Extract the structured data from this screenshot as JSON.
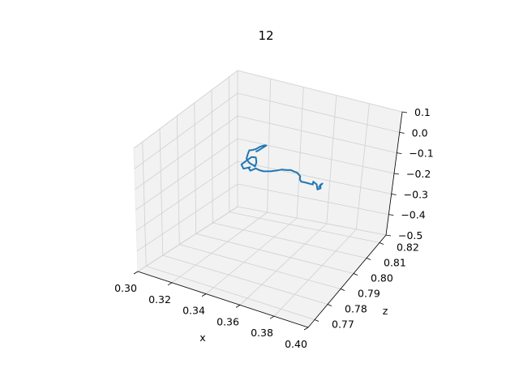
{
  "chart_data": {
    "type": "line",
    "projection": "3d",
    "title": "12",
    "xlabel": "x",
    "ylabel": "",
    "zlabel": "z",
    "grid": true,
    "series_color": "#1f77b4",
    "pane_color": "#f2f2f2",
    "x_axis": {
      "range": [
        0.3,
        0.4
      ],
      "ticks": [
        "0.30",
        "0.32",
        "0.34",
        "0.36",
        "0.38",
        "0.40"
      ]
    },
    "y_axis": {
      "range": [
        0.765,
        0.825
      ],
      "ticks": [
        "0.77",
        "0.78",
        "0.79",
        "0.80",
        "0.81",
        "0.82"
      ]
    },
    "z_axis": {
      "range": [
        -0.5,
        0.1
      ],
      "ticks": [
        "0.1",
        "0.0",
        "−0.1",
        "−0.2",
        "−0.3",
        "−0.4",
        "−0.5"
      ]
    },
    "series": [
      {
        "values": [
          [
            0.3357,
            0.8037,
            -0.0955
          ],
          [
            0.3374,
            0.8037,
            -0.0867
          ],
          [
            0.3387,
            0.804,
            -0.0791
          ],
          [
            0.3403,
            0.804,
            -0.0696
          ],
          [
            0.3419,
            0.804,
            -0.0603
          ],
          [
            0.3417,
            0.8028,
            -0.0533
          ],
          [
            0.34,
            0.802,
            -0.0573
          ],
          [
            0.3385,
            0.8007,
            -0.0633
          ],
          [
            0.3365,
            0.8,
            -0.0678
          ],
          [
            0.3344,
            0.8005,
            -0.0752
          ],
          [
            0.3353,
            0.7985,
            -0.081
          ],
          [
            0.3365,
            0.7965,
            -0.0861
          ],
          [
            0.3379,
            0.796,
            -0.092
          ],
          [
            0.3392,
            0.7959,
            -0.0981
          ],
          [
            0.3413,
            0.796,
            -0.104
          ],
          [
            0.3419,
            0.7964,
            -0.11
          ],
          [
            0.3408,
            0.7985,
            -0.106
          ],
          [
            0.3385,
            0.8005,
            -0.0988
          ],
          [
            0.336,
            0.8002,
            -0.1003
          ],
          [
            0.334,
            0.7979,
            -0.1124
          ],
          [
            0.3328,
            0.7969,
            -0.1208
          ],
          [
            0.3357,
            0.7953,
            -0.1255
          ],
          [
            0.3373,
            0.7979,
            -0.1298
          ],
          [
            0.3357,
            0.7984,
            -0.1375
          ],
          [
            0.3375,
            0.7978,
            -0.1443
          ],
          [
            0.339,
            0.7999,
            -0.1435
          ],
          [
            0.342,
            0.7991,
            -0.1414
          ],
          [
            0.3449,
            0.799,
            -0.1408
          ],
          [
            0.3484,
            0.7997,
            -0.1386
          ],
          [
            0.3519,
            0.8009,
            -0.135
          ],
          [
            0.3545,
            0.801,
            -0.1274
          ],
          [
            0.3576,
            0.8015,
            -0.1276
          ],
          [
            0.3593,
            0.8019,
            -0.1268
          ],
          [
            0.3622,
            0.8018,
            -0.1297
          ],
          [
            0.3634,
            0.8018,
            -0.1297
          ],
          [
            0.3657,
            0.8015,
            -0.1408
          ],
          [
            0.366,
            0.8009,
            -0.15
          ],
          [
            0.3671,
            0.8005,
            -0.1559
          ],
          [
            0.3693,
            0.8009,
            -0.1581
          ],
          [
            0.3741,
            0.801,
            -0.1595
          ],
          [
            0.3736,
            0.8019,
            -0.1534
          ],
          [
            0.3761,
            0.8015,
            -0.1581
          ],
          [
            0.3783,
            0.7996,
            -0.1652
          ],
          [
            0.38,
            0.8,
            -0.1593
          ],
          [
            0.3785,
            0.8014,
            -0.1558
          ],
          [
            0.3786,
            0.8029,
            -0.1597
          ],
          [
            0.3774,
            0.8016,
            -0.1684
          ]
        ]
      }
    ]
  }
}
